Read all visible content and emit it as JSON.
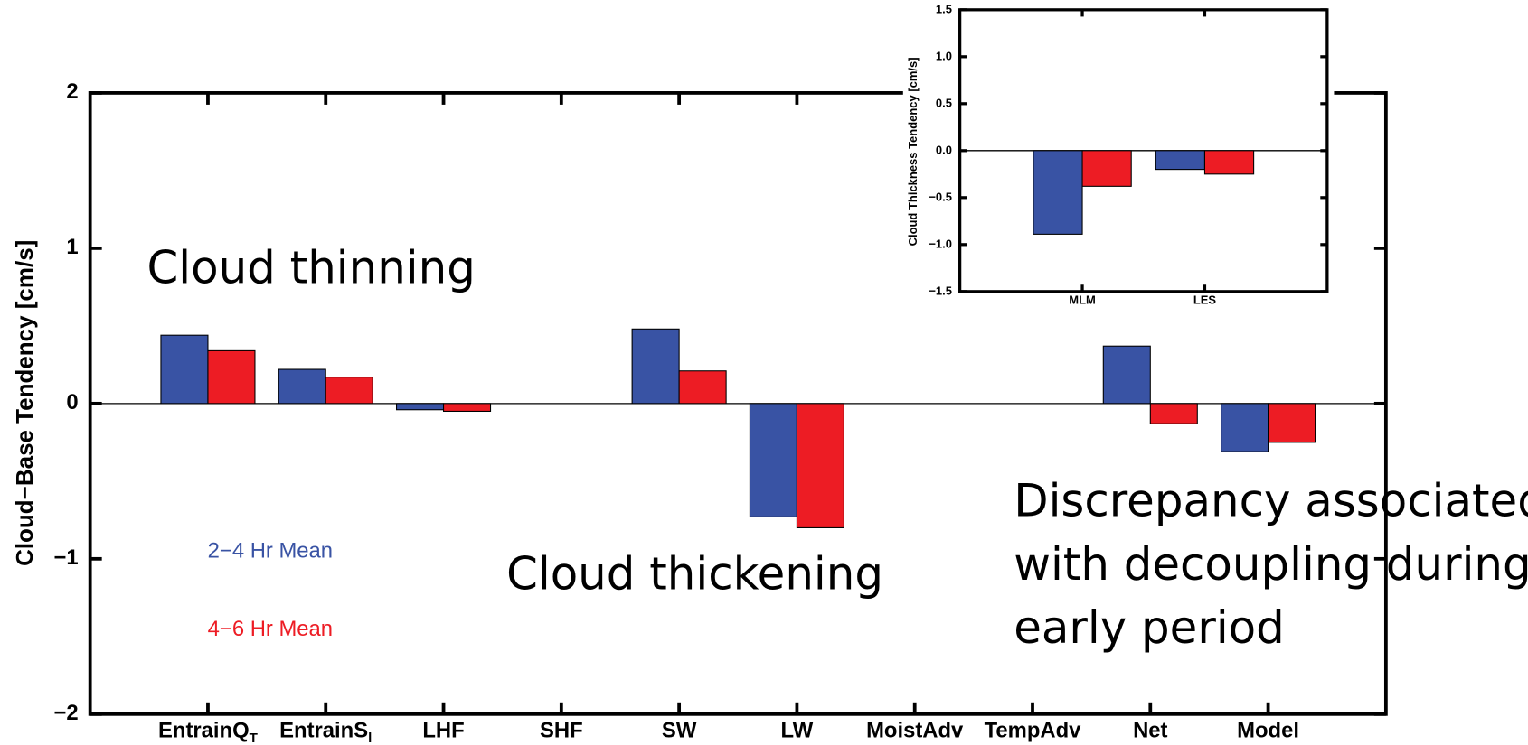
{
  "chart_data": [
    {
      "type": "bar",
      "ylabel": "Cloud−Base Tendency [cm/s]",
      "categories": [
        "EntrainQ",
        "EntrainS",
        "LHF",
        "SHF",
        "SW",
        "LW",
        "MoistAdv",
        "TempAdv",
        "Net",
        "Model"
      ],
      "category_subscripts": [
        "T",
        "l",
        null,
        null,
        null,
        null,
        null,
        null,
        null,
        null
      ],
      "series": [
        {
          "name": "2−4 Hr Mean",
          "color": "#3953a4",
          "values": [
            0.44,
            0.22,
            -0.04,
            0,
            0.48,
            -0.73,
            0,
            0,
            0.37,
            -0.31
          ]
        },
        {
          "name": "4−6 Hr Mean",
          "color": "#ed1c24",
          "values": [
            0.34,
            0.17,
            -0.05,
            0,
            0.21,
            -0.8,
            0,
            0,
            -0.13,
            -0.25
          ]
        }
      ],
      "ylim": [
        -2,
        2
      ],
      "yticks": [
        {
          "value": -2,
          "label": "−2"
        },
        {
          "value": -1,
          "label": "−1"
        },
        0,
        1,
        2
      ],
      "annotations": [
        "Cloud thinning",
        "Cloud thickening",
        "Discrepancy associated",
        "with decoupling during",
        "early period"
      ]
    },
    {
      "type": "bar",
      "ylabel": "Cloud Thickness Tendency [cm/s]",
      "categories": [
        "MLM",
        "LES"
      ],
      "series": [
        {
          "color": "#3953a4",
          "values": [
            -0.89,
            -0.2
          ]
        },
        {
          "color": "#ed1c24",
          "values": [
            -0.38,
            -0.25
          ]
        }
      ],
      "ylim": [
        -1.5,
        1.5
      ],
      "yticks": [
        {
          "value": -1.5,
          "label": "−1.5"
        },
        {
          "value": -1,
          "label": "−1.0"
        },
        {
          "value": -0.5,
          "label": "−0.5"
        },
        {
          "value": 0,
          "label": "0.0"
        },
        {
          "value": 0.5,
          "label": "0.5"
        },
        {
          "value": 1,
          "label": "1.0"
        },
        1.5
      ]
    }
  ]
}
